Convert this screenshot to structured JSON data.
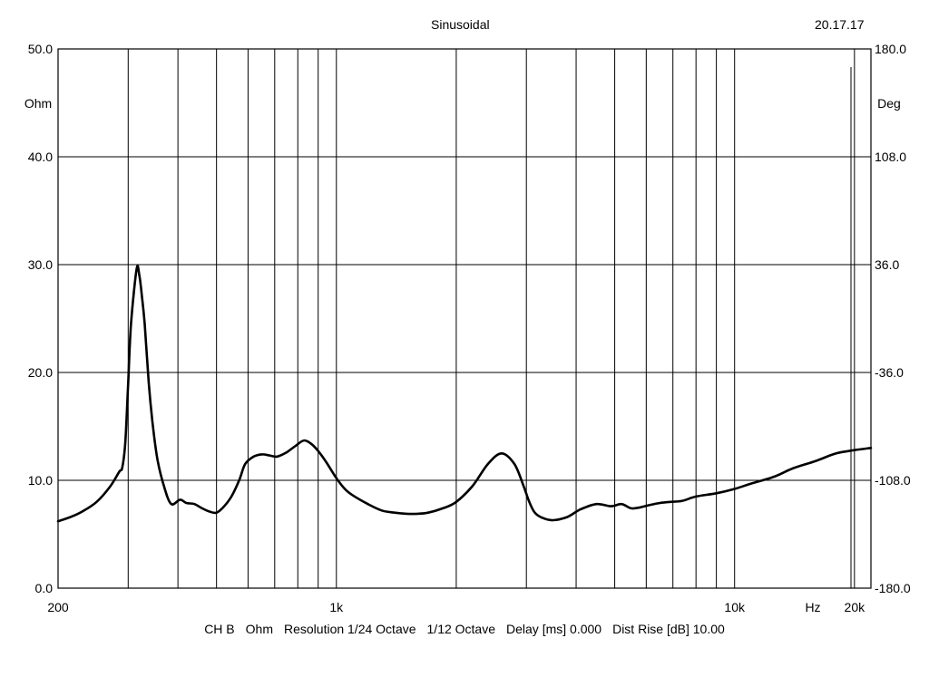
{
  "header": {
    "title": "Sinusoidal",
    "time": "20.17.17"
  },
  "footer": {
    "channel": "CH B",
    "unit": "Ohm",
    "resolution": "Resolution 1/24 Octave",
    "smoothing": "1/12 Octave",
    "delay": "Delay [ms] 0.000",
    "dist_rise": "Dist Rise [dB] 10.00"
  },
  "chart_data": {
    "type": "line",
    "title": "Sinusoidal",
    "x_scale": "log",
    "xlim": [
      200,
      22000
    ],
    "ylim": [
      0,
      50
    ],
    "y2lim": [
      -180,
      180
    ],
    "ylabel": "Ohm",
    "y2label": "Deg",
    "xlabel": "Hz",
    "grid": true,
    "y_ticks": [
      {
        "value": 0,
        "label": "0.0"
      },
      {
        "value": 10,
        "label": "10.0"
      },
      {
        "value": 20,
        "label": "20.0"
      },
      {
        "value": 30,
        "label": "30.0"
      },
      {
        "value": 40,
        "label": "40.0"
      },
      {
        "value": 50,
        "label": "50.0"
      }
    ],
    "y2_ticks": [
      {
        "value": -180,
        "label": "-180.0"
      },
      {
        "value": -108,
        "label": "-108.0"
      },
      {
        "value": -36,
        "label": "-36.0"
      },
      {
        "value": 36,
        "label": "36.0"
      },
      {
        "value": 108,
        "label": "108.0"
      },
      {
        "value": 180,
        "label": "180.0"
      }
    ],
    "x_ticks": [
      {
        "value": 200,
        "label": "200"
      },
      {
        "value": 1000,
        "label": "1k"
      },
      {
        "value": 10000,
        "label": "10k"
      },
      {
        "value": 20000,
        "label": "20k"
      }
    ],
    "x_gridlines": [
      300,
      400,
      500,
      600,
      700,
      800,
      900,
      1000,
      2000,
      3000,
      4000,
      5000,
      6000,
      7000,
      8000,
      9000,
      10000,
      20000
    ],
    "series": [
      {
        "color": "#000000",
        "x": [
          200,
          215,
          230,
          250,
          270,
          285,
          290,
          295,
          300,
          305,
          315,
          320,
          325,
          330,
          338,
          345,
          355,
          370,
          385,
          405,
          420,
          440,
          460,
          480,
          500,
          520,
          545,
          570,
          590,
          620,
          650,
          680,
          710,
          750,
          790,
          830,
          870,
          910,
          950,
          1000,
          1050,
          1100,
          1200,
          1300,
          1400,
          1500,
          1600,
          1700,
          1850,
          2000,
          2200,
          2400,
          2600,
          2800,
          2950,
          3050,
          3150,
          3300,
          3500,
          3800,
          4100,
          4500,
          4900,
          5200,
          5500,
          5800,
          6100,
          6500,
          6900,
          7400,
          8000,
          9000,
          10000,
          11000,
          12500,
          14000,
          16000,
          18000,
          20000,
          22000
        ],
        "y": [
          6.2,
          6.6,
          7.1,
          8.0,
          9.4,
          10.8,
          11.2,
          13.5,
          19,
          24.5,
          29.6,
          29.0,
          27.0,
          24.5,
          19.0,
          15.5,
          12.0,
          9.3,
          7.8,
          8.2,
          7.9,
          7.8,
          7.4,
          7.1,
          7.0,
          7.5,
          8.5,
          10.0,
          11.5,
          12.2,
          12.4,
          12.3,
          12.2,
          12.6,
          13.2,
          13.7,
          13.3,
          12.5,
          11.5,
          10.2,
          9.2,
          8.6,
          7.8,
          7.2,
          7.0,
          6.9,
          6.9,
          7.0,
          7.4,
          8.0,
          9.5,
          11.5,
          12.5,
          11.5,
          9.5,
          8.0,
          7.0,
          6.5,
          6.3,
          6.6,
          7.3,
          7.8,
          7.6,
          7.8,
          7.4,
          7.5,
          7.7,
          7.9,
          8.0,
          8.1,
          8.5,
          8.8,
          9.2,
          9.7,
          10.3,
          11.1,
          11.8,
          12.5,
          12.8,
          13.0
        ]
      }
    ]
  }
}
